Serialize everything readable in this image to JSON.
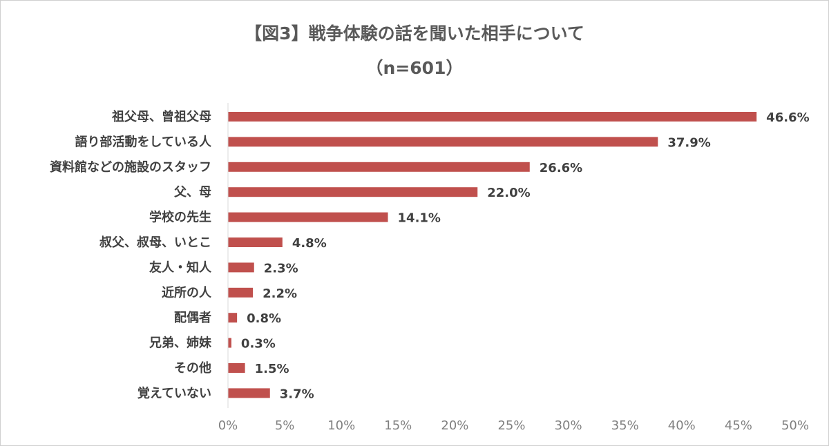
{
  "chart_data": {
    "type": "bar",
    "orientation": "horizontal",
    "title": "【図3】戦争体験の話を聞いた相手について",
    "subtitle": "（n=601）",
    "categories": [
      "祖父母、曾祖父母",
      "語り部活動をしている人",
      "資料館などの施設のスタッフ",
      "父、母",
      "学校の先生",
      "叔父、叔母、いとこ",
      "友人・知人",
      "近所の人",
      "配偶者",
      "兄弟、姉妹",
      "その他",
      "覚えていない"
    ],
    "values": [
      46.6,
      37.9,
      26.6,
      22.0,
      14.1,
      4.8,
      2.3,
      2.2,
      0.8,
      0.3,
      1.5,
      3.7
    ],
    "data_labels": [
      "46.6%",
      "37.9%",
      "26.6%",
      "22.0%",
      "14.1%",
      "4.8%",
      "2.3%",
      "2.2%",
      "0.8%",
      "0.3%",
      "1.5%",
      "3.7%"
    ],
    "xlim": [
      0,
      50
    ],
    "x_ticks": [
      0,
      5,
      10,
      15,
      20,
      25,
      30,
      35,
      40,
      45,
      50
    ],
    "x_tick_labels": [
      "0%",
      "5%",
      "10%",
      "15%",
      "20%",
      "25%",
      "30%",
      "35%",
      "40%",
      "45%",
      "50%"
    ],
    "grid": false,
    "legend": "none",
    "bar_color": "#c0504d"
  }
}
